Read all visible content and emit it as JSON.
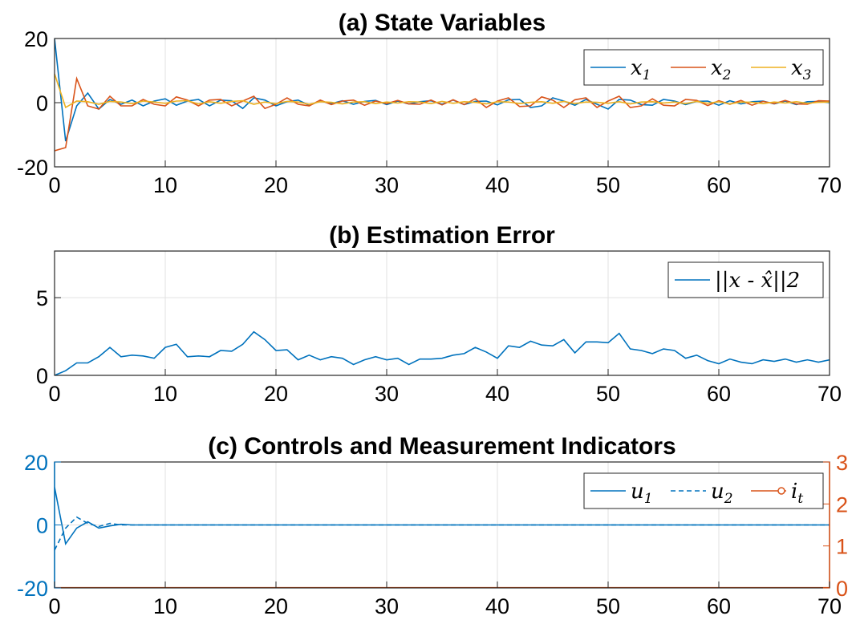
{
  "chart_data": [
    {
      "type": "line",
      "title": "(a) State Variables",
      "xlim": [
        0,
        70
      ],
      "ylim": [
        -20,
        20
      ],
      "xticks": [
        0,
        10,
        20,
        30,
        40,
        50,
        60,
        70
      ],
      "yticks": [
        -20,
        0,
        20
      ],
      "grid": true,
      "legend": "top-right",
      "x": [
        0,
        1,
        2,
        3,
        4,
        5,
        6,
        7,
        8,
        9,
        10,
        11,
        12,
        13,
        14,
        15,
        16,
        17,
        18,
        19,
        20,
        21,
        22,
        23,
        24,
        25,
        26,
        27,
        28,
        29,
        30,
        31,
        32,
        33,
        34,
        35,
        36,
        37,
        38,
        39,
        40,
        41,
        42,
        43,
        44,
        45,
        46,
        47,
        48,
        49,
        50,
        51,
        52,
        53,
        54,
        55,
        56,
        57,
        58,
        59,
        60,
        61,
        62,
        63,
        64,
        65,
        66,
        67,
        68,
        69,
        70
      ],
      "series": [
        {
          "name": "x1",
          "name_base": "x",
          "name_sub": "1",
          "color": "#0072BD",
          "values": [
            20,
            -12,
            -1,
            3,
            -2,
            1,
            -0.5,
            0.8,
            -1,
            0.5,
            1.2,
            -0.8,
            0.5,
            1,
            -1,
            0.8,
            0.6,
            -1.8,
            1.5,
            0.8,
            -1,
            0.3,
            0.8,
            -0.8,
            0.5,
            -0.3,
            0.6,
            -0.5,
            0.4,
            0.7,
            -0.6,
            0.5,
            -0.4,
            0.3,
            0.6,
            -0.5,
            0.8,
            -0.6,
            0.4,
            0.5,
            -0.7,
            0.9,
            1,
            -1.5,
            -1,
            1.5,
            0.5,
            -0.8,
            1,
            -0.5,
            -2,
            1,
            0.8,
            -0.6,
            -0.8,
            1,
            0.5,
            -0.6,
            0.4,
            0.5,
            -0.8,
            0.6,
            -0.4,
            0.3,
            0.5,
            -0.4,
            0.5,
            -0.6,
            0.3,
            0.4,
            0
          ]
        },
        {
          "name": "x2",
          "name_base": "x",
          "name_sub": "2",
          "color": "#D95319",
          "values": [
            -15,
            -14,
            7.5,
            -1,
            -2,
            2,
            -1,
            -1,
            1,
            -0.5,
            -1,
            1.8,
            0.8,
            -1,
            0.8,
            1,
            -1,
            0.5,
            2,
            -1.8,
            -0.5,
            1.5,
            -0.5,
            -1,
            0.8,
            -0.6,
            0.5,
            0.8,
            -0.8,
            0.5,
            -0.3,
            0.7,
            -0.4,
            -0.5,
            0.8,
            -0.7,
            0.9,
            -0.6,
            1.2,
            -1.5,
            0.5,
            1.5,
            -1.2,
            -1,
            1.8,
            0.8,
            -1.5,
            0.9,
            1.5,
            -1.5,
            0.5,
            2,
            -1.5,
            -1,
            1.2,
            -0.8,
            -1,
            1,
            0.7,
            -0.9,
            0.6,
            -0.5,
            0.7,
            -0.8,
            0.4,
            -0.3,
            0.7,
            -0.4,
            -0.5,
            0.6,
            0.5
          ]
        },
        {
          "name": "x3",
          "name_base": "x",
          "name_sub": "3",
          "color": "#EDB120",
          "values": [
            9,
            -1.5,
            0.5,
            0.3,
            -0.5,
            0.4,
            0.2,
            -0.3,
            0.5,
            0.2,
            -0.2,
            0.5,
            0.6,
            -0.4,
            0.3,
            -0.2,
            0.4,
            0.6,
            -0.5,
            0.2,
            -0.3,
            0.4,
            0.2,
            -0.5,
            0.3,
            0.1,
            -0.4,
            0.2,
            0.3,
            -0.3,
            0.2,
            -0.1,
            0.3,
            0.2,
            -0.3,
            0.4,
            -0.2,
            0.3,
            0.1,
            -0.4,
            0.3,
            0.2,
            -0.3,
            0.1,
            0.3,
            -0.2,
            0.4,
            -0.3,
            0.2,
            0.1,
            -0.2,
            0.3,
            -0.4,
            0.2,
            0.3,
            -0.1,
            0.2,
            -0.3,
            0.4,
            -0.2,
            0.3,
            -0.4,
            0.2,
            0.1,
            -0.3,
            0.2,
            -0.1,
            0.3,
            -0.2,
            0.1,
            0.2
          ]
        }
      ]
    },
    {
      "type": "line",
      "title": "(b) Estimation Error",
      "xlim": [
        0,
        70
      ],
      "ylim": [
        0,
        8
      ],
      "xticks": [
        0,
        10,
        20,
        30,
        40,
        50,
        60,
        70
      ],
      "yticks": [
        0,
        5
      ],
      "grid": true,
      "legend": "top-right",
      "x": [
        0,
        1,
        2,
        3,
        4,
        5,
        6,
        7,
        8,
        9,
        10,
        11,
        12,
        13,
        14,
        15,
        16,
        17,
        18,
        19,
        20,
        21,
        22,
        23,
        24,
        25,
        26,
        27,
        28,
        29,
        30,
        31,
        32,
        33,
        34,
        35,
        36,
        37,
        38,
        39,
        40,
        41,
        42,
        43,
        44,
        45,
        46,
        47,
        48,
        49,
        50,
        51,
        52,
        53,
        54,
        55,
        56,
        57,
        58,
        59,
        60,
        61,
        62,
        63,
        64,
        65,
        66,
        67,
        68,
        69,
        70
      ],
      "series": [
        {
          "name": "||x - x̂||2",
          "color": "#0072BD",
          "values": [
            0,
            0.3,
            0.8,
            0.8,
            1.2,
            1.8,
            1.2,
            1.3,
            1.25,
            1.1,
            1.8,
            2,
            1.2,
            1.25,
            1.2,
            1.6,
            1.55,
            2,
            2.8,
            2.3,
            1.6,
            1.65,
            1,
            1.3,
            1,
            1.2,
            1.1,
            0.7,
            1,
            1.2,
            1,
            1.1,
            0.7,
            1.05,
            1.05,
            1.1,
            1.3,
            1.4,
            1.8,
            1.5,
            1.1,
            1.9,
            1.8,
            2.2,
            1.95,
            1.9,
            2.3,
            1.45,
            2.15,
            2.15,
            2.1,
            2.7,
            1.7,
            1.6,
            1.4,
            1.7,
            1.6,
            1.1,
            1.3,
            0.95,
            0.75,
            1.05,
            0.85,
            0.75,
            1,
            0.9,
            1.05,
            0.85,
            1,
            0.85,
            1
          ]
        }
      ]
    },
    {
      "type": "line",
      "title": "(c) Controls and Measurement Indicators",
      "xlim": [
        0,
        70
      ],
      "ylim": [
        -20,
        20
      ],
      "y2lim": [
        0,
        3
      ],
      "xticks": [
        0,
        10,
        20,
        30,
        40,
        50,
        60,
        70
      ],
      "yticks": [
        -20,
        0,
        20
      ],
      "y2ticks": [
        0,
        1,
        2,
        3
      ],
      "grid": true,
      "legend": "top-right",
      "x": [
        0,
        1,
        2,
        3,
        4,
        5,
        6,
        7,
        8,
        9,
        10,
        11,
        12,
        13,
        14,
        15,
        16,
        17,
        18,
        19,
        20,
        21,
        22,
        23,
        24,
        25,
        26,
        27,
        28,
        29,
        30,
        31,
        32,
        33,
        34,
        35,
        36,
        37,
        38,
        39,
        40,
        41,
        42,
        43,
        44,
        45,
        46,
        47,
        48,
        49,
        50,
        51,
        52,
        53,
        54,
        55,
        56,
        57,
        58,
        59,
        60,
        61,
        62,
        63,
        64,
        65,
        66,
        67,
        68,
        69,
        70
      ],
      "series": [
        {
          "name": "u1",
          "name_base": "u",
          "name_sub": "1",
          "color": "#0072BD",
          "style": "solid",
          "axis": "left",
          "values": [
            12,
            -6,
            -1,
            1,
            -1,
            -0.3,
            0.2,
            0,
            0,
            0,
            0,
            0,
            0,
            0,
            0,
            0,
            0,
            0,
            0,
            0,
            0,
            0,
            0,
            0,
            0,
            0,
            0,
            0,
            0,
            0,
            0,
            0,
            0,
            0,
            0,
            0,
            0,
            0,
            0,
            0,
            0,
            0,
            0,
            0,
            0,
            0,
            0,
            0,
            0,
            0,
            0,
            0,
            0,
            0,
            0,
            0,
            0,
            0,
            0,
            0,
            0,
            0,
            0,
            0,
            0,
            0,
            0,
            0,
            0,
            0,
            0
          ]
        },
        {
          "name": "u2",
          "name_base": "u",
          "name_sub": "2",
          "color": "#0072BD",
          "style": "dashed",
          "axis": "left",
          "values": [
            -8,
            -1,
            2.5,
            0.5,
            -0.5,
            0.5,
            0,
            0,
            0,
            0,
            0,
            0,
            0,
            0,
            0,
            0,
            0,
            0,
            0,
            0,
            0,
            0,
            0,
            0,
            0,
            0,
            0,
            0,
            0,
            0,
            0,
            0,
            0,
            0,
            0,
            0,
            0,
            0,
            0,
            0,
            0,
            0,
            0,
            0,
            0,
            0,
            0,
            0,
            0,
            0,
            0,
            0,
            0,
            0,
            0,
            0,
            0,
            0,
            0,
            0,
            0,
            0,
            0,
            0,
            0,
            0,
            0,
            0,
            0,
            0,
            0
          ]
        },
        {
          "name": "it",
          "name_base": "i",
          "name_sub": "t",
          "color": "#D95319",
          "style": "solid-marker",
          "axis": "right",
          "values": [
            0,
            0,
            0,
            0,
            0,
            0,
            0,
            0,
            0,
            0,
            0,
            0,
            0,
            0,
            0,
            0,
            0,
            0,
            0,
            0,
            0,
            0,
            0,
            0,
            0,
            0,
            0,
            0,
            0,
            0,
            0,
            0,
            0,
            0,
            0,
            0,
            0,
            0,
            0,
            0,
            0,
            0,
            0,
            0,
            0,
            0,
            0,
            0,
            0,
            0,
            0,
            0,
            0,
            0,
            0,
            0,
            0,
            0,
            0,
            0,
            0,
            0,
            0,
            0,
            0,
            0,
            0,
            0,
            0,
            0,
            0
          ]
        }
      ]
    }
  ]
}
